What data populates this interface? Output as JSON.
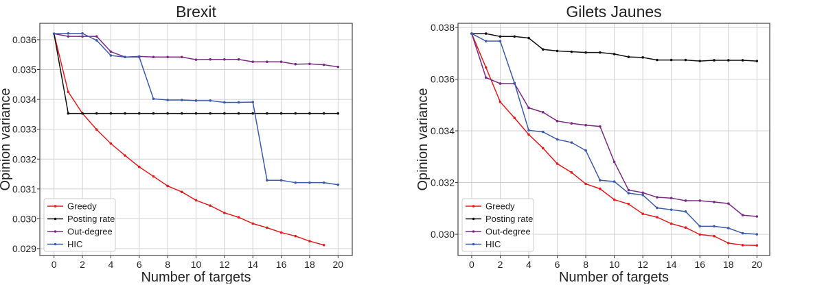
{
  "chart_data": [
    {
      "type": "line",
      "title": "Brexit",
      "xlabel": "Number of targets",
      "ylabel": "Opinion variance",
      "xlim": [
        -1,
        21
      ],
      "ylim": [
        0.02877,
        0.03655
      ],
      "grid": true,
      "legend": "bottom-left",
      "xticks": [
        0,
        2,
        4,
        6,
        8,
        10,
        12,
        14,
        16,
        18,
        20
      ],
      "yticks": [
        0.029,
        0.03,
        0.031,
        0.032,
        0.033,
        0.034,
        0.035,
        0.036
      ],
      "ytick_labels": [
        "0.029",
        "0.030",
        "0.031",
        "0.032",
        "0.033",
        "0.034",
        "0.035",
        "0.036"
      ],
      "x": [
        0,
        1,
        2,
        3,
        4,
        5,
        6,
        7,
        8,
        9,
        10,
        11,
        12,
        13,
        14,
        15,
        16,
        17,
        18,
        19,
        20
      ],
      "series": [
        {
          "name": "Greedy",
          "color": "#e41a1c",
          "values": [
            0.0362,
            0.03425,
            0.03353,
            0.03299,
            0.03252,
            0.03212,
            0.03174,
            0.03142,
            0.0311,
            0.0309,
            0.03062,
            0.03044,
            0.0302,
            0.03005,
            0.02984,
            0.0297,
            0.02954,
            0.02942,
            0.02925,
            0.02912,
            null
          ]
        },
        {
          "name": "Posting rate",
          "color": "#111111",
          "values": [
            0.0362,
            0.03353,
            0.03353,
            0.03353,
            0.03353,
            0.03353,
            0.03353,
            0.03353,
            0.03353,
            0.03353,
            0.03353,
            0.03353,
            0.03353,
            0.03353,
            0.03353,
            0.03353,
            0.03353,
            0.03353,
            0.03353,
            0.03353,
            0.03353
          ]
        },
        {
          "name": "Out-degree",
          "color": "#7b2a83",
          "values": [
            0.0362,
            0.03611,
            0.03611,
            0.03611,
            0.0356,
            0.03542,
            0.03544,
            0.03542,
            0.03542,
            0.03542,
            0.03533,
            0.03534,
            0.03534,
            0.03534,
            0.03526,
            0.03526,
            0.03526,
            0.03518,
            0.03519,
            0.03516,
            0.03509
          ]
        },
        {
          "name": "HIC",
          "color": "#3a5ba9",
          "values": [
            0.0362,
            0.03621,
            0.03621,
            0.03598,
            0.03547,
            0.03542,
            0.03542,
            0.03402,
            0.03398,
            0.03398,
            0.03396,
            0.03396,
            0.0339,
            0.0339,
            0.03391,
            0.03129,
            0.03129,
            0.03121,
            0.03121,
            0.03121,
            0.03114
          ]
        }
      ]
    },
    {
      "type": "line",
      "title": "Gilets Jaunes",
      "xlabel": "Number of targets",
      "ylabel": "Opinion variance",
      "xlim": [
        -0.96,
        20.9
      ],
      "ylim": [
        0.02918,
        0.03816
      ],
      "grid": true,
      "legend": "bottom-left",
      "xticks": [
        0,
        2,
        4,
        6,
        8,
        10,
        12,
        14,
        16,
        18,
        20
      ],
      "yticks": [
        0.03,
        0.032,
        0.034,
        0.036,
        0.038
      ],
      "ytick_labels": [
        "0.030",
        "0.032",
        "0.034",
        "0.036",
        "0.038"
      ],
      "x": [
        0,
        1,
        2,
        3,
        4,
        5,
        6,
        7,
        8,
        9,
        10,
        11,
        12,
        13,
        14,
        15,
        16,
        17,
        18,
        19,
        20
      ],
      "series": [
        {
          "name": "Greedy",
          "color": "#e41a1c",
          "values": [
            0.03776,
            0.03645,
            0.03512,
            0.0345,
            0.03386,
            0.03333,
            0.03273,
            0.03239,
            0.03195,
            0.03176,
            0.03134,
            0.03117,
            0.03079,
            0.03066,
            0.03041,
            0.03026,
            0.02999,
            0.02993,
            0.02966,
            0.02958,
            0.02957
          ]
        },
        {
          "name": "Posting rate",
          "color": "#111111",
          "values": [
            0.03776,
            0.03776,
            0.03765,
            0.03765,
            0.03759,
            0.03715,
            0.03709,
            0.03706,
            0.03703,
            0.03703,
            0.03697,
            0.03686,
            0.03684,
            0.03674,
            0.03674,
            0.03674,
            0.0367,
            0.03673,
            0.03673,
            0.03673,
            0.0367
          ]
        },
        {
          "name": "Out-degree",
          "color": "#7b2a83",
          "values": [
            0.03776,
            0.03606,
            0.03583,
            0.03583,
            0.03489,
            0.03472,
            0.03438,
            0.03429,
            0.03422,
            0.03417,
            0.0328,
            0.03171,
            0.03161,
            0.03143,
            0.0314,
            0.0313,
            0.0313,
            0.03125,
            0.03119,
            0.03074,
            0.03069
          ]
        },
        {
          "name": "HIC",
          "color": "#3a5ba9",
          "values": [
            0.03776,
            0.03747,
            0.03747,
            0.03585,
            0.03402,
            0.03396,
            0.03367,
            0.03355,
            0.03324,
            0.03209,
            0.03204,
            0.03159,
            0.03152,
            0.03102,
            0.03095,
            0.03088,
            0.03031,
            0.03031,
            0.03024,
            0.03004,
            0.03
          ]
        }
      ]
    }
  ]
}
